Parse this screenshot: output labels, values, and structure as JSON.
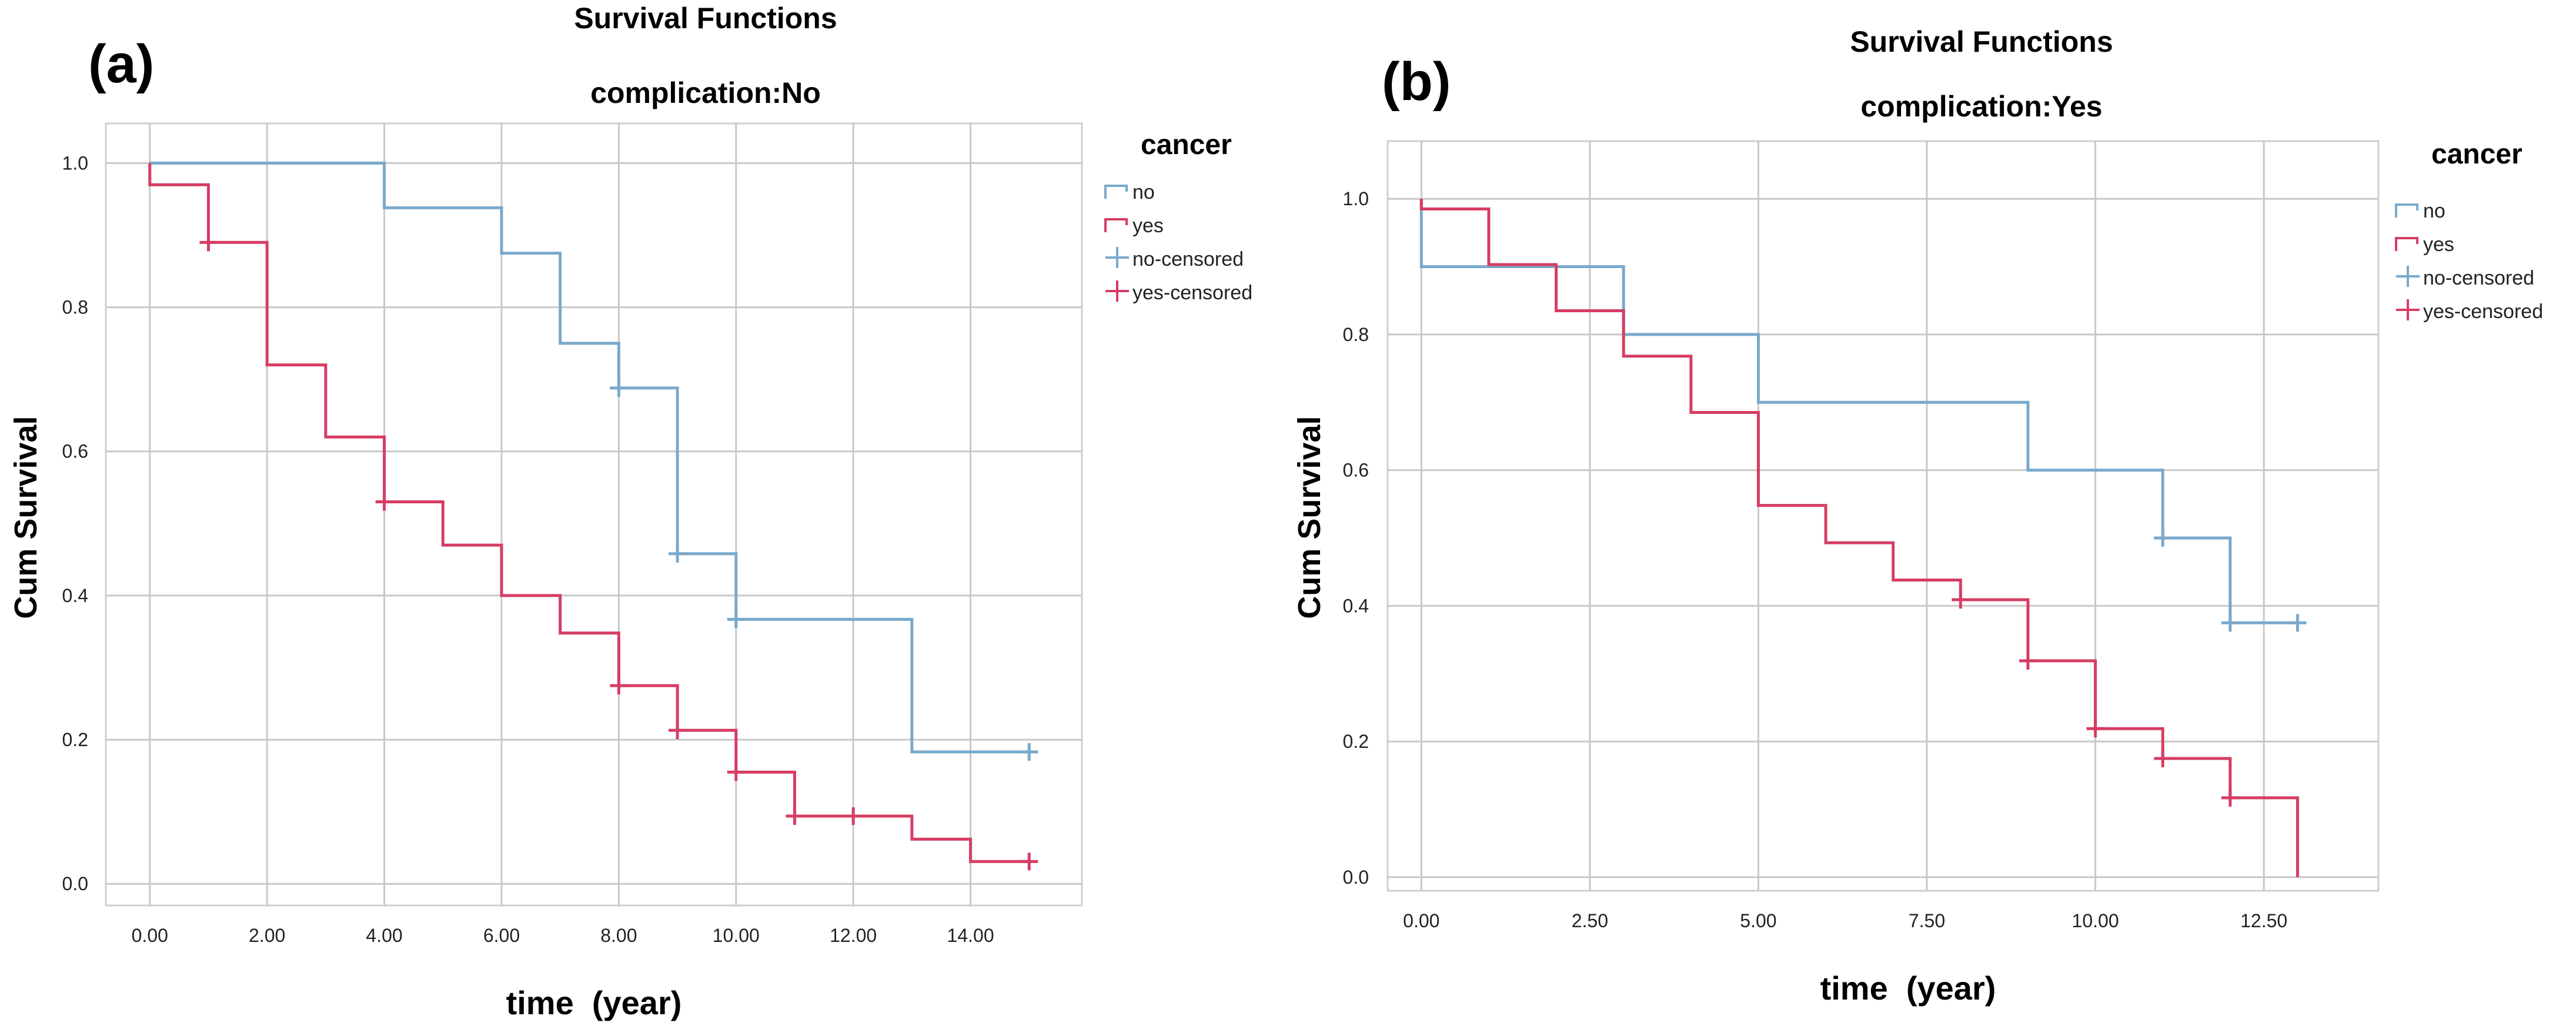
{
  "chart_data": [
    {
      "panel_label": "(a)",
      "type": "line",
      "step": true,
      "title": "Survival Functions",
      "subtitle": "complication:No",
      "xlabel": "time  (year)",
      "ylabel": "Cum Survival",
      "xlim": [
        -0.75,
        15.9
      ],
      "ylim": [
        -0.03,
        1.055
      ],
      "xticks": [
        0,
        2,
        4,
        6,
        8,
        10,
        12,
        14
      ],
      "xtick_labels": [
        "0.00",
        "2.00",
        "4.00",
        "6.00",
        "8.00",
        "10.00",
        "12.00",
        "14.00"
      ],
      "yticks": [
        0,
        0.2,
        0.4,
        0.6,
        0.8,
        1.0
      ],
      "ytick_labels": [
        "0.0",
        "0.2",
        "0.4",
        "0.6",
        "0.8",
        "1.0"
      ],
      "grid": true,
      "legend": {
        "title": "cancer",
        "position": "right",
        "entries": [
          "no",
          "yes",
          "no-censored",
          "yes-censored"
        ]
      },
      "series": [
        {
          "name": "no",
          "color": "#7aa9cc",
          "x": [
            0,
            4,
            6,
            7,
            8,
            9,
            10,
            13,
            15
          ],
          "y": [
            1.0,
            0.938,
            0.875,
            0.75,
            0.688,
            0.458,
            0.367,
            0.183,
            0.183
          ]
        },
        {
          "name": "yes",
          "color": "#d63d63",
          "x": [
            0,
            1,
            2,
            3,
            4,
            5,
            6,
            7,
            8,
            9,
            10,
            11,
            12,
            13,
            14,
            15
          ],
          "y": [
            0.97,
            0.89,
            0.72,
            0.62,
            0.53,
            0.47,
            0.4,
            0.348,
            0.275,
            0.213,
            0.155,
            0.094,
            0.094,
            0.062,
            0.031,
            0.031
          ]
        }
      ],
      "censored": [
        {
          "name": "no-censored",
          "color": "#7aa9cc",
          "x": [
            8,
            9,
            10,
            15
          ],
          "y": [
            0.688,
            0.458,
            0.367,
            0.183
          ]
        },
        {
          "name": "yes-censored",
          "color": "#d63d63",
          "x": [
            1,
            4,
            8,
            9,
            10,
            11,
            12,
            15
          ],
          "y": [
            0.89,
            0.53,
            0.275,
            0.213,
            0.155,
            0.094,
            0.094,
            0.031
          ]
        }
      ]
    },
    {
      "panel_label": "(b)",
      "type": "line",
      "step": true,
      "title": "Survival Functions",
      "subtitle": "complication:Yes",
      "xlabel": "time  (year)",
      "ylabel": "Cum Survival",
      "xlim": [
        -0.5,
        14.2
      ],
      "ylim": [
        -0.02,
        1.085
      ],
      "xticks": [
        0,
        2.5,
        5,
        7.5,
        10,
        12.5
      ],
      "xtick_labels": [
        "0.00",
        "2.50",
        "5.00",
        "7.50",
        "10.00",
        "12.50"
      ],
      "yticks": [
        0,
        0.2,
        0.4,
        0.6,
        0.8,
        1.0
      ],
      "ytick_labels": [
        "0.0",
        "0.2",
        "0.4",
        "0.6",
        "0.8",
        "1.0"
      ],
      "grid": true,
      "legend": {
        "title": "cancer",
        "position": "right",
        "entries": [
          "no",
          "yes",
          "no-censored",
          "yes-censored"
        ]
      },
      "series": [
        {
          "name": "no",
          "color": "#7aa9cc",
          "x": [
            0,
            3,
            5,
            9,
            11,
            12,
            13
          ],
          "y": [
            0.9,
            0.8,
            0.7,
            0.6,
            0.5,
            0.375,
            0.375
          ]
        },
        {
          "name": "yes",
          "color": "#d63d63",
          "x": [
            0,
            1,
            2,
            3,
            4,
            5,
            6,
            7,
            8,
            9,
            10,
            11,
            12,
            13
          ],
          "y": [
            0.985,
            0.903,
            0.835,
            0.768,
            0.685,
            0.548,
            0.493,
            0.438,
            0.409,
            0.319,
            0.219,
            0.175,
            0.117,
            0.0
          ]
        }
      ],
      "censored": [
        {
          "name": "no-censored",
          "color": "#7aa9cc",
          "x": [
            11,
            12,
            13
          ],
          "y": [
            0.5,
            0.375,
            0.375
          ]
        },
        {
          "name": "yes-censored",
          "color": "#d63d63",
          "x": [
            8,
            9,
            10,
            11,
            12
          ],
          "y": [
            0.409,
            0.319,
            0.219,
            0.175,
            0.117
          ]
        }
      ]
    }
  ]
}
